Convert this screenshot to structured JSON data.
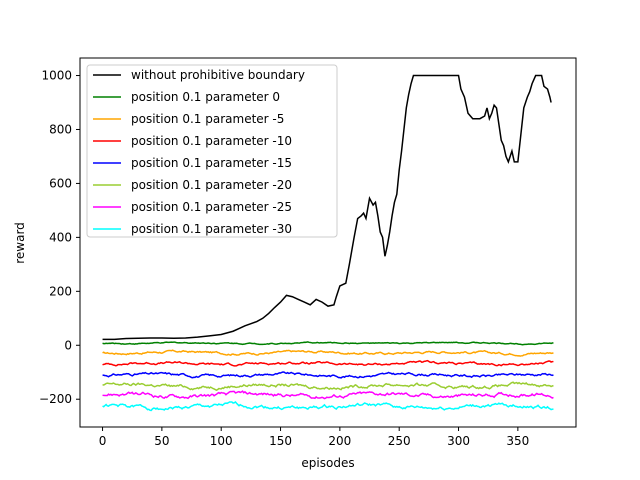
{
  "chart_data": {
    "type": "line",
    "xlabel": "episodes",
    "ylabel": "reward",
    "xlim": [
      -19,
      399
    ],
    "ylim": [
      -303,
      1065
    ],
    "xticks": [
      0,
      50,
      100,
      150,
      200,
      250,
      300,
      350
    ],
    "yticks": [
      -200,
      0,
      200,
      400,
      600,
      800,
      1000
    ],
    "ytick_labels": [
      "−200",
      "0",
      "200",
      "400",
      "600",
      "800",
      "1000"
    ],
    "legend_position": "top-left",
    "grid": false,
    "series": [
      {
        "name": "without prohibitive boundary",
        "color": "#000000",
        "points": [
          [
            0,
            22
          ],
          [
            10,
            22
          ],
          [
            20,
            25
          ],
          [
            30,
            26
          ],
          [
            40,
            27
          ],
          [
            50,
            27
          ],
          [
            60,
            26
          ],
          [
            70,
            27
          ],
          [
            80,
            30
          ],
          [
            90,
            35
          ],
          [
            100,
            40
          ],
          [
            110,
            52
          ],
          [
            115,
            62
          ],
          [
            120,
            72
          ],
          [
            125,
            80
          ],
          [
            130,
            88
          ],
          [
            135,
            100
          ],
          [
            140,
            118
          ],
          [
            145,
            140
          ],
          [
            150,
            160
          ],
          [
            155,
            185
          ],
          [
            160,
            180
          ],
          [
            165,
            170
          ],
          [
            170,
            160
          ],
          [
            175,
            150
          ],
          [
            180,
            170
          ],
          [
            185,
            160
          ],
          [
            190,
            145
          ],
          [
            195,
            150
          ],
          [
            197,
            180
          ],
          [
            200,
            220
          ],
          [
            205,
            230
          ],
          [
            208,
            300
          ],
          [
            210,
            350
          ],
          [
            212,
            400
          ],
          [
            215,
            470
          ],
          [
            218,
            480
          ],
          [
            220,
            490
          ],
          [
            222,
            470
          ],
          [
            225,
            545
          ],
          [
            228,
            520
          ],
          [
            230,
            530
          ],
          [
            232,
            480
          ],
          [
            234,
            420
          ],
          [
            236,
            400
          ],
          [
            238,
            330
          ],
          [
            240,
            370
          ],
          [
            242,
            420
          ],
          [
            244,
            480
          ],
          [
            246,
            530
          ],
          [
            248,
            560
          ],
          [
            250,
            650
          ],
          [
            252,
            720
          ],
          [
            254,
            800
          ],
          [
            256,
            880
          ],
          [
            258,
            930
          ],
          [
            260,
            970
          ],
          [
            262,
            1000
          ],
          [
            280,
            1000
          ],
          [
            300,
            1000
          ],
          [
            302,
            950
          ],
          [
            305,
            920
          ],
          [
            308,
            860
          ],
          [
            312,
            840
          ],
          [
            318,
            840
          ],
          [
            322,
            850
          ],
          [
            324,
            880
          ],
          [
            326,
            840
          ],
          [
            328,
            860
          ],
          [
            330,
            890
          ],
          [
            332,
            880
          ],
          [
            334,
            820
          ],
          [
            336,
            760
          ],
          [
            338,
            740
          ],
          [
            340,
            700
          ],
          [
            342,
            680
          ],
          [
            345,
            720
          ],
          [
            347,
            680
          ],
          [
            350,
            680
          ],
          [
            352,
            760
          ],
          [
            355,
            880
          ],
          [
            358,
            920
          ],
          [
            360,
            940
          ],
          [
            362,
            970
          ],
          [
            365,
            1000
          ],
          [
            370,
            1000
          ],
          [
            372,
            960
          ],
          [
            375,
            950
          ],
          [
            377,
            920
          ],
          [
            378,
            900
          ]
        ]
      },
      {
        "name": "position 0.1 parameter 0",
        "color": "#008000",
        "base": 8,
        "amp": 3
      },
      {
        "name": "position 0.1 parameter -5",
        "color": "#ffa500",
        "base": -27,
        "amp": 6
      },
      {
        "name": "position 0.1 parameter -10",
        "color": "#ff0000",
        "base": -68,
        "amp": 6
      },
      {
        "name": "position 0.1 parameter -15",
        "color": "#0000ff",
        "base": -110,
        "amp": 7
      },
      {
        "name": "position 0.1 parameter -20",
        "color": "#9acd32",
        "base": -150,
        "amp": 9
      },
      {
        "name": "position 0.1 parameter -25",
        "color": "#ff00ff",
        "base": -185,
        "amp": 10
      },
      {
        "name": "position 0.1 parameter -30",
        "color": "#00ffff",
        "base": -228,
        "amp": 10
      }
    ],
    "n_episodes": 381
  }
}
